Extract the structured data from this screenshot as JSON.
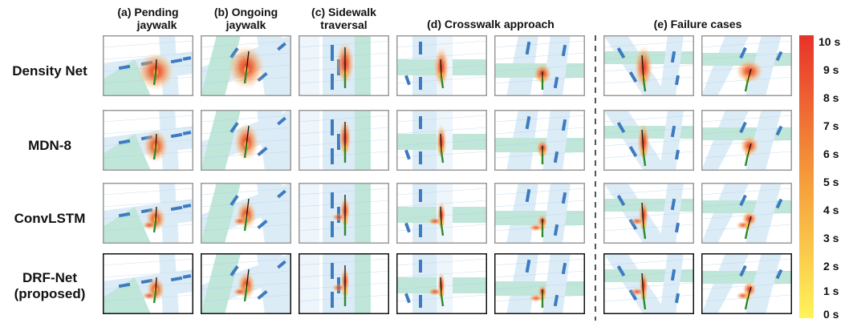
{
  "columns": {
    "a": [
      "(a) Pending",
      "jaywalk"
    ],
    "b": [
      "(b) Ongoing",
      "jaywalk"
    ],
    "c": [
      "(c) Sidewalk",
      "traversal"
    ],
    "d": [
      "(d) Crosswalk approach"
    ],
    "e": [
      "(e) Failure cases"
    ]
  },
  "rows": [
    {
      "label": [
        "Density Net"
      ],
      "kind": "density",
      "box": "#9a9a9a"
    },
    {
      "label": [
        "MDN-8"
      ],
      "kind": "mdn",
      "box": "#9a9a9a"
    },
    {
      "label": [
        "ConvLSTM"
      ],
      "kind": "convlstm",
      "box": "#9a9a9a"
    },
    {
      "label": [
        "DRF-Net",
        "(proposed)"
      ],
      "kind": "drf",
      "box": "#111111"
    }
  ],
  "colorbar": {
    "ticks": [
      "10 s",
      "9 s",
      "8 s",
      "7 s",
      "6 s",
      "5 s",
      "4 s",
      "3 s",
      "2 s",
      "1 s",
      "0 s"
    ],
    "top_color": "#e8322a",
    "mid_color": "#f59a3a",
    "bottom_color": "#fff45a"
  },
  "colors": {
    "crosswalk": "#bfe6d8",
    "sidewalk": "#dcecf7",
    "lane": "#a9cde8",
    "vehicle": "#3d7bc0",
    "past_track": "#2a8a2a",
    "gt_future": "#111111"
  }
}
